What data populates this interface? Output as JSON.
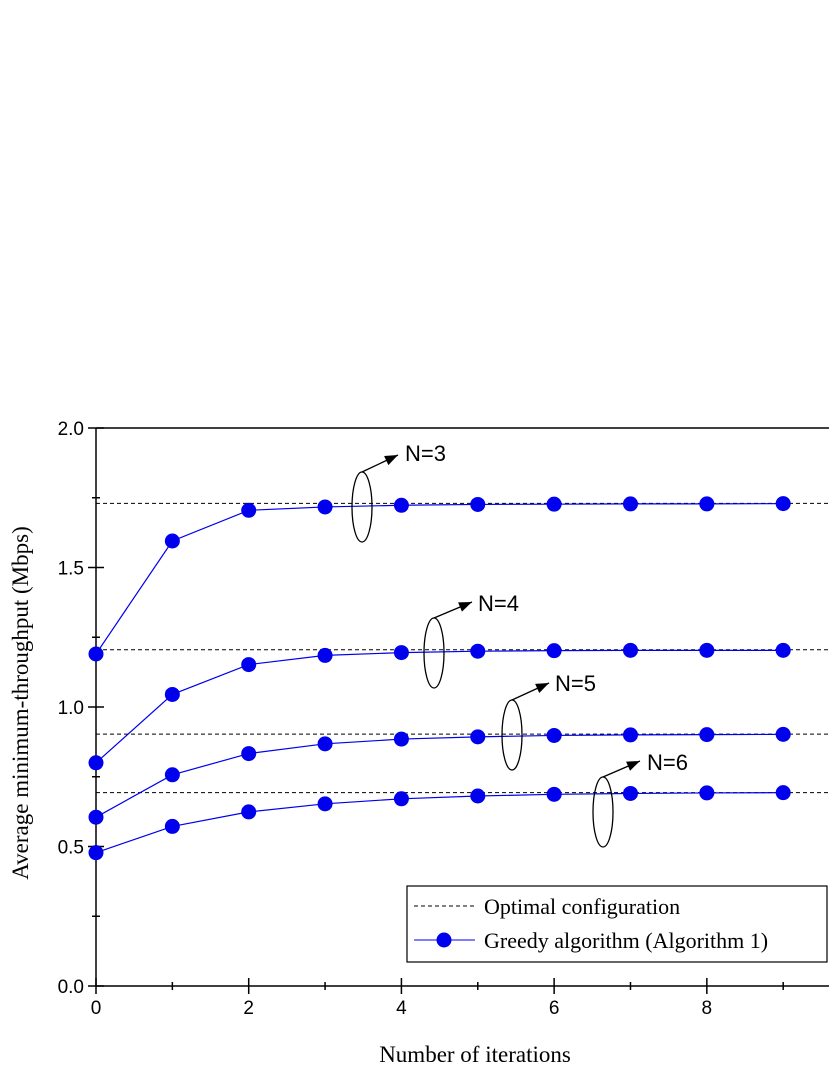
{
  "chart_data": {
    "type": "line",
    "xlabel": "Number of iterations",
    "ylabel": "Average minimum-throughput (Mbps)",
    "xlim": [
      0,
      9.6
    ],
    "ylim": [
      0,
      2.0
    ],
    "xticks": [
      0,
      2,
      4,
      6,
      8
    ],
    "yticks": [
      "0.0",
      "0.5",
      "1.0",
      "1.5",
      "2.0"
    ],
    "x": [
      0,
      1,
      2,
      3,
      4,
      5,
      6,
      7,
      8,
      9
    ],
    "greedy_series": [
      {
        "label": "N=3",
        "values": [
          1.19,
          1.595,
          1.705,
          1.717,
          1.723,
          1.726,
          1.727,
          1.728,
          1.728,
          1.729
        ]
      },
      {
        "label": "N=4",
        "values": [
          0.8,
          1.045,
          1.152,
          1.185,
          1.195,
          1.2,
          1.202,
          1.203,
          1.203,
          1.203
        ]
      },
      {
        "label": "N=5",
        "values": [
          0.605,
          0.757,
          0.833,
          0.868,
          0.885,
          0.893,
          0.898,
          0.9,
          0.901,
          0.902
        ]
      },
      {
        "label": "N=6",
        "values": [
          0.478,
          0.572,
          0.624,
          0.653,
          0.671,
          0.681,
          0.687,
          0.69,
          0.692,
          0.693
        ]
      }
    ],
    "optimal_levels": [
      1.73,
      1.205,
      0.903,
      0.693
    ],
    "annotations": [
      "N=3",
      "N=4",
      "N=5",
      "N=6"
    ],
    "legend": {
      "placement": "bottom-right",
      "entries": [
        "Optimal configuration",
        "Greedy algorithm (Algorithm 1)"
      ]
    },
    "colors": {
      "greedy": "#0000ee",
      "optimal": "#000000"
    }
  }
}
